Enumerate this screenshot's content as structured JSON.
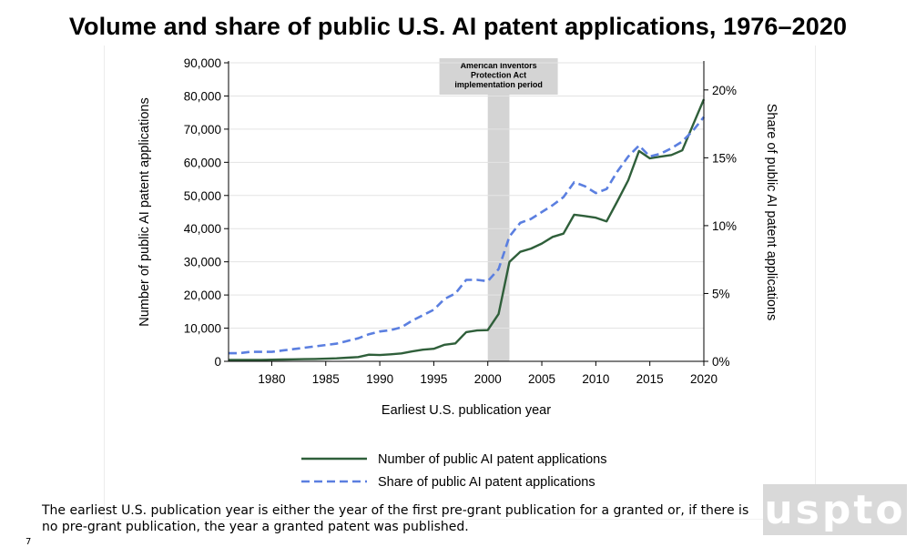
{
  "slide": {
    "title": "Volume and share of public U.S. AI patent applications, 1976–2020",
    "footnote": "The earliest U.S. publication year is either the year of the first pre-grant publication for a granted or, if there is no pre-grant publication, the year a granted patent was published.",
    "page_number": "7",
    "logo_text": "uspto"
  },
  "chart_data": {
    "type": "line",
    "title": "",
    "xlabel": "Earliest U.S. publication year",
    "ylabel": "Number of public AI patent applications",
    "y2label": "Share of public AI patent applications",
    "xlim": [
      1976,
      2020
    ],
    "ylim": [
      0,
      90000
    ],
    "y2lim": [
      0,
      22
    ],
    "x_ticks": [
      1980,
      1985,
      1990,
      1995,
      2000,
      2005,
      2010,
      2015,
      2020
    ],
    "y_ticks": [
      "0",
      "10,000",
      "20,000",
      "30,000",
      "40,000",
      "50,000",
      "60,000",
      "70,000",
      "80,000",
      "90,000"
    ],
    "y2_ticks": [
      "0%",
      "5%",
      "10%",
      "15%",
      "20%"
    ],
    "y2_tick_values": [
      0,
      5,
      10,
      15,
      20
    ],
    "grid": "horizontal",
    "legend_position": "bottom",
    "x": [
      1976,
      1977,
      1978,
      1979,
      1980,
      1981,
      1982,
      1983,
      1984,
      1985,
      1986,
      1987,
      1988,
      1989,
      1990,
      1991,
      1992,
      1993,
      1994,
      1995,
      1996,
      1997,
      1998,
      1999,
      2000,
      2001,
      2002,
      2003,
      2004,
      2005,
      2006,
      2007,
      2008,
      2009,
      2010,
      2011,
      2012,
      2013,
      2014,
      2015,
      2016,
      2017,
      2018,
      2019,
      2020
    ],
    "series": [
      {
        "name": "Number of public AI patent applications",
        "axis": "left",
        "color": "#2f5f3a",
        "dash": "solid",
        "values": [
          400,
          400,
          400,
          450,
          500,
          550,
          600,
          650,
          700,
          800,
          900,
          1100,
          1300,
          2000,
          1900,
          2100,
          2400,
          3000,
          3500,
          3800,
          5000,
          5400,
          8800,
          9300,
          9400,
          14300,
          30000,
          33000,
          34000,
          35500,
          37500,
          38500,
          44200,
          43800,
          43300,
          42200,
          48300,
          54600,
          63400,
          61200,
          61700,
          62200,
          63600,
          71300,
          79000
        ]
      },
      {
        "name": "Share of public AI patent applications",
        "axis": "right",
        "color": "#5b7fe0",
        "dash": "dashed",
        "values": [
          0.6,
          0.6,
          0.7,
          0.7,
          0.7,
          0.8,
          0.9,
          1.0,
          1.1,
          1.2,
          1.3,
          1.5,
          1.7,
          2.0,
          2.2,
          2.3,
          2.5,
          3.0,
          3.4,
          3.8,
          4.6,
          5.0,
          6.0,
          6.0,
          5.9,
          6.8,
          9.2,
          10.2,
          10.5,
          11.0,
          11.5,
          12.1,
          13.2,
          12.9,
          12.4,
          12.7,
          14.0,
          15.1,
          15.9,
          15.1,
          15.3,
          15.7,
          16.2,
          17.0,
          18.0
        ]
      }
    ],
    "annotation": {
      "label": "American Inventors Protection Act implementation period",
      "x_start": 2000,
      "x_end": 2002,
      "color": "#d4d4d4"
    }
  }
}
